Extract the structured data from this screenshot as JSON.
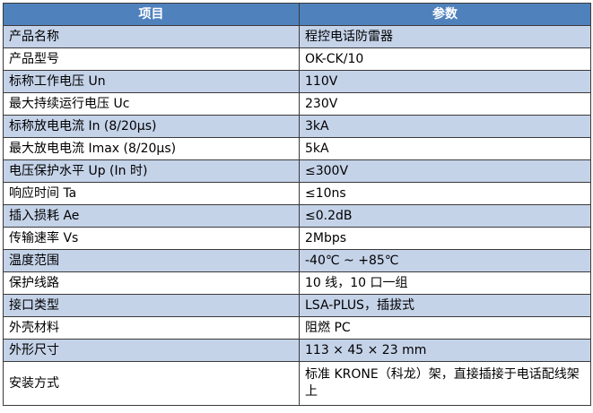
{
  "table": {
    "header": [
      "项目",
      "参数"
    ],
    "rows": [
      [
        "产品名称",
        "程控电话防雷器"
      ],
      [
        "产品型号",
        "OK-CK/10"
      ],
      [
        "标称工作电压 Un",
        "110V"
      ],
      [
        "最大持续运行电压 Uc",
        "230V"
      ],
      [
        "标称放电电流 In (8/20μs)",
        "3kA"
      ],
      [
        "最大放电电流 Imax (8/20μs)",
        "5kA"
      ],
      [
        "电压保护水平 Up (In 时)",
        "≤300V"
      ],
      [
        "响应时间 Ta",
        "≤10ns"
      ],
      [
        "插入损耗 Ae",
        "≤0.2dB"
      ],
      [
        "传输速率 Vs",
        "2Mbps"
      ],
      [
        "温度范围",
        "-40℃ ~ +85℃"
      ],
      [
        "保护线路",
        "10 线，10 口一组"
      ],
      [
        "接口类型",
        "LSA-PLUS，插拔式"
      ],
      [
        "外壳材料",
        "阻燃 PC"
      ],
      [
        "外形尺寸",
        "113 × 45 × 23 mm"
      ],
      [
        "安装方式",
        "标准 KRONE（科龙）架，直接插接于电话配线架上"
      ]
    ]
  }
}
